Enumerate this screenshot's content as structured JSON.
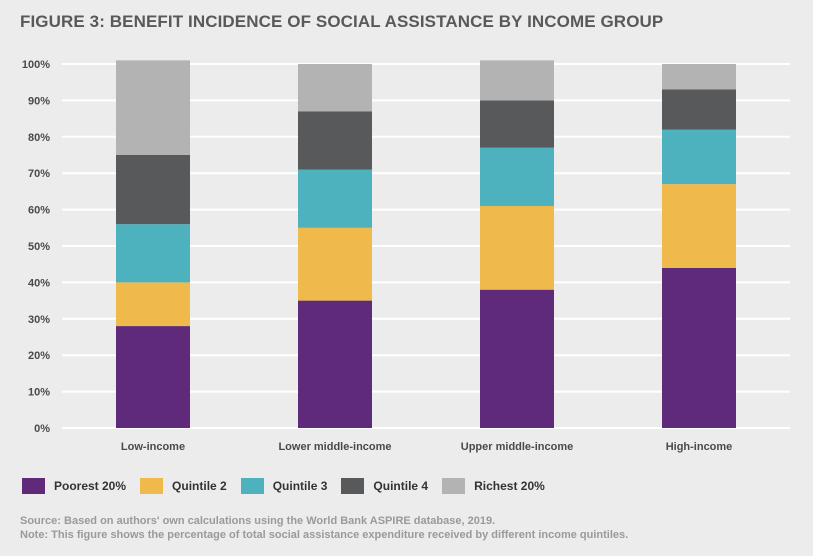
{
  "chart_data": {
    "type": "bar",
    "stacked": true,
    "title": "FIGURE 3: BENEFIT INCIDENCE OF SOCIAL ASSISTANCE BY INCOME GROUP",
    "xlabel": "",
    "ylabel": "",
    "ylim": [
      0,
      100
    ],
    "yticks": [
      "0%",
      "10%",
      "20%",
      "30%",
      "40%",
      "50%",
      "60%",
      "70%",
      "80%",
      "90%",
      "100%"
    ],
    "categories": [
      "Low-income",
      "Lower middle-income",
      "Upper middle-income",
      "High-income"
    ],
    "series": [
      {
        "name": "Poorest 20%",
        "color": "#5f2a7a",
        "values": [
          28,
          35,
          38,
          44
        ]
      },
      {
        "name": "Quintile 2",
        "color": "#f0b94b",
        "values": [
          12,
          20,
          23,
          23
        ]
      },
      {
        "name": "Quintile 3",
        "color": "#4eb1be",
        "values": [
          16,
          16,
          16,
          15
        ]
      },
      {
        "name": "Quintile 4",
        "color": "#58595b",
        "values": [
          19,
          16,
          13,
          11
        ]
      },
      {
        "name": "Richest 20%",
        "color": "#b3b3b4",
        "values": [
          26,
          13,
          11,
          7
        ]
      }
    ],
    "grid": true,
    "legend": "bottom"
  },
  "footer": {
    "source": "Source: Based on authors' own calculations using the World Bank ASPIRE database, 2019.",
    "note": "Note: This figure shows the percentage of total social assistance expenditure received by different income quintiles."
  }
}
